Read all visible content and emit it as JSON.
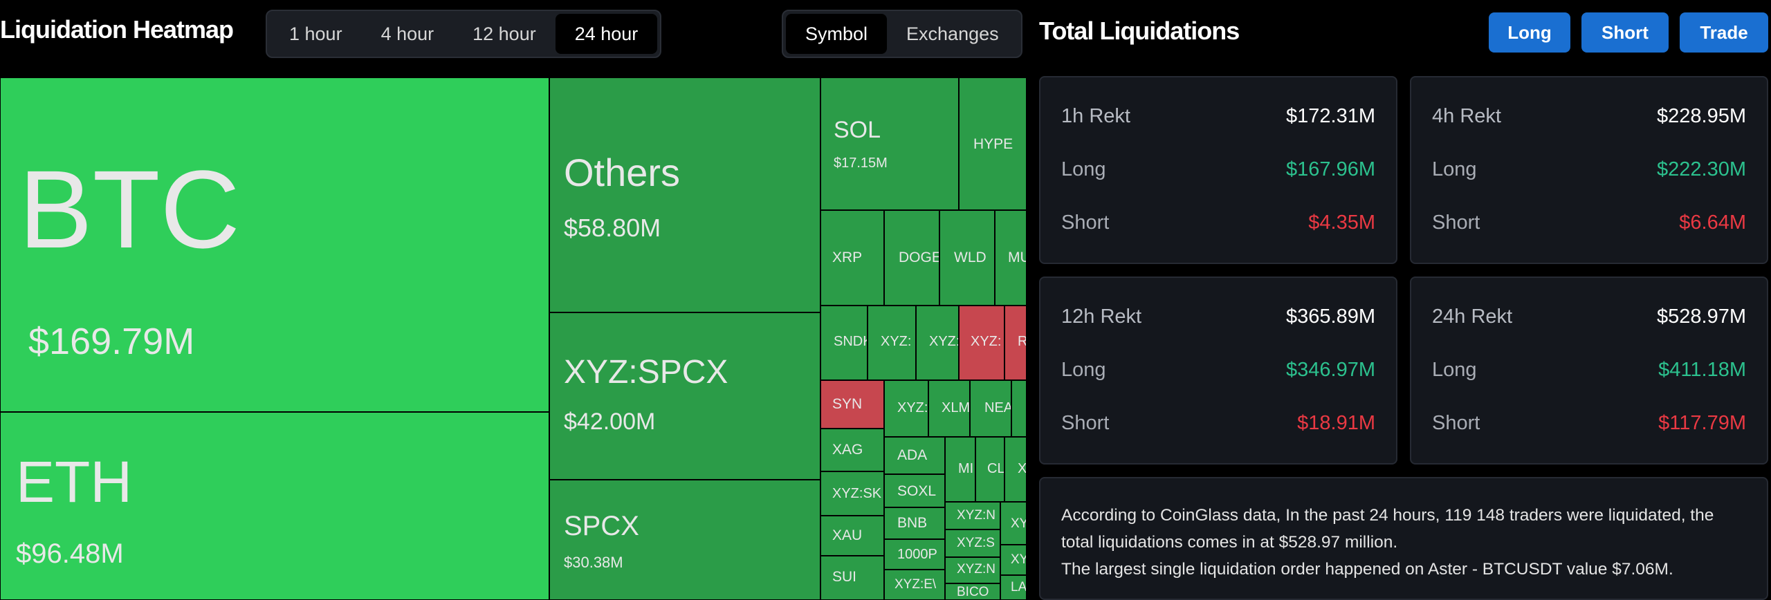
{
  "header": {
    "title": "Liquidation Heatmap",
    "time_options": [
      "1 hour",
      "4 hour",
      "12 hour",
      "24 hour"
    ],
    "time_selected": "24 hour",
    "view_options": [
      "Symbol",
      "Exchanges"
    ],
    "view_selected": "Symbol"
  },
  "treemap": {
    "cells": [
      {
        "id": "btc",
        "symbol": "BTC",
        "value": "$169.79M",
        "color": "g1"
      },
      {
        "id": "eth",
        "symbol": "ETH",
        "value": "$96.48M",
        "color": "g1"
      },
      {
        "id": "others",
        "symbol": "Others",
        "value": "$58.80M",
        "color": "g2"
      },
      {
        "id": "xyz-spcx",
        "symbol": "XYZ:SPCX",
        "value": "$42.00M",
        "color": "g2"
      },
      {
        "id": "spcx",
        "symbol": "SPCX",
        "value": "$30.38M",
        "color": "g2"
      },
      {
        "id": "sol",
        "symbol": "SOL",
        "value": "$17.15M",
        "color": "g2"
      },
      {
        "id": "hype",
        "symbol": "HYPE",
        "value": "",
        "color": "g2"
      },
      {
        "id": "xrp",
        "symbol": "XRP",
        "value": "",
        "color": "g2"
      },
      {
        "id": "doge",
        "symbol": "DOGE",
        "value": "",
        "color": "g2"
      },
      {
        "id": "wld",
        "symbol": "WLD",
        "value": "",
        "color": "g2"
      },
      {
        "id": "mu",
        "symbol": "MU",
        "value": "",
        "color": "g2"
      },
      {
        "id": "sndk",
        "symbol": "SNDK",
        "value": "",
        "color": "g2"
      },
      {
        "id": "xyz-a",
        "symbol": "XYZ:",
        "value": "",
        "color": "g2"
      },
      {
        "id": "xyz-b",
        "symbol": "XYZ:",
        "value": "",
        "color": "g2"
      },
      {
        "id": "xyz-red",
        "symbol": "XYZ:",
        "value": "",
        "color": "r"
      },
      {
        "id": "r-red",
        "symbol": "R",
        "value": "",
        "color": "r"
      },
      {
        "id": "syn",
        "symbol": "SYN",
        "value": "",
        "color": "r"
      },
      {
        "id": "xyz-c",
        "symbol": "XYZ:",
        "value": "",
        "color": "g2"
      },
      {
        "id": "xlm",
        "symbol": "XLM",
        "value": "",
        "color": "g2"
      },
      {
        "id": "near",
        "symbol": "NEA",
        "value": "",
        "color": "g2"
      },
      {
        "id": "small-1",
        "symbol": "",
        "value": "",
        "color": "g2"
      },
      {
        "id": "xag",
        "symbol": "XAG",
        "value": "",
        "color": "g2"
      },
      {
        "id": "ada",
        "symbol": "ADA",
        "value": "",
        "color": "g2"
      },
      {
        "id": "mi",
        "symbol": "MI",
        "value": "",
        "color": "g2"
      },
      {
        "id": "cl",
        "symbol": "CL",
        "value": "",
        "color": "g2"
      },
      {
        "id": "x",
        "symbol": "X",
        "value": "",
        "color": "g2"
      },
      {
        "id": "xyz-sk",
        "symbol": "XYZ:SK",
        "value": "",
        "color": "g2"
      },
      {
        "id": "soxl",
        "symbol": "SOXL",
        "value": "",
        "color": "g2"
      },
      {
        "id": "xyz-n1",
        "symbol": "XYZ:N",
        "value": "",
        "color": "g2"
      },
      {
        "id": "xy1",
        "symbol": "XY",
        "value": "",
        "color": "g2"
      },
      {
        "id": "xau",
        "symbol": "XAU",
        "value": "",
        "color": "g2"
      },
      {
        "id": "bnb",
        "symbol": "BNB",
        "value": "",
        "color": "g2"
      },
      {
        "id": "xyz-s",
        "symbol": "XYZ:S",
        "value": "",
        "color": "g2"
      },
      {
        "id": "xy2",
        "symbol": "XY",
        "value": "",
        "color": "g2"
      },
      {
        "id": "1000p",
        "symbol": "1000P",
        "value": "",
        "color": "g2"
      },
      {
        "id": "xyz-n2",
        "symbol": "XYZ:N",
        "value": "",
        "color": "g2"
      },
      {
        "id": "sui",
        "symbol": "SUI",
        "value": "",
        "color": "g2"
      },
      {
        "id": "xyz-e",
        "symbol": "XYZ:E\\",
        "value": "",
        "color": "g2"
      },
      {
        "id": "bico",
        "symbol": "BICO",
        "value": "",
        "color": "g2"
      },
      {
        "id": "la",
        "symbol": "LA",
        "value": "",
        "color": "g2"
      }
    ]
  },
  "panel": {
    "title": "Total Liquidations",
    "buttons": {
      "long": "Long",
      "short": "Short",
      "trade": "Trade"
    },
    "cards": [
      {
        "id": "1h",
        "label": "1h Rekt",
        "total": "$172.31M",
        "long_label": "Long",
        "long": "$167.96M",
        "short_label": "Short",
        "short": "$4.35M"
      },
      {
        "id": "4h",
        "label": "4h Rekt",
        "total": "$228.95M",
        "long_label": "Long",
        "long": "$222.30M",
        "short_label": "Short",
        "short": "$6.64M"
      },
      {
        "id": "12h",
        "label": "12h Rekt",
        "total": "$365.89M",
        "long_label": "Long",
        "long": "$346.97M",
        "short_label": "Short",
        "short": "$18.91M"
      },
      {
        "id": "24h",
        "label": "24h Rekt",
        "total": "$528.97M",
        "long_label": "Long",
        "long": "$411.18M",
        "short_label": "Short",
        "short": "$117.79M"
      }
    ],
    "summary": [
      "According to CoinGlass data, In the past 24 hours, 119 148 traders were liquidated, the total liquidations comes in at $528.97 million.",
      "The largest single liquidation order happened on Aster - BTCUSDT value $7.06M."
    ]
  },
  "colors": {
    "green_primary": "#2fce5a",
    "green_secondary": "#2b9c48",
    "red": "#c7474f",
    "long_text": "#2cc18e",
    "short_text": "#ea3943",
    "button": "#1a6fd1"
  }
}
